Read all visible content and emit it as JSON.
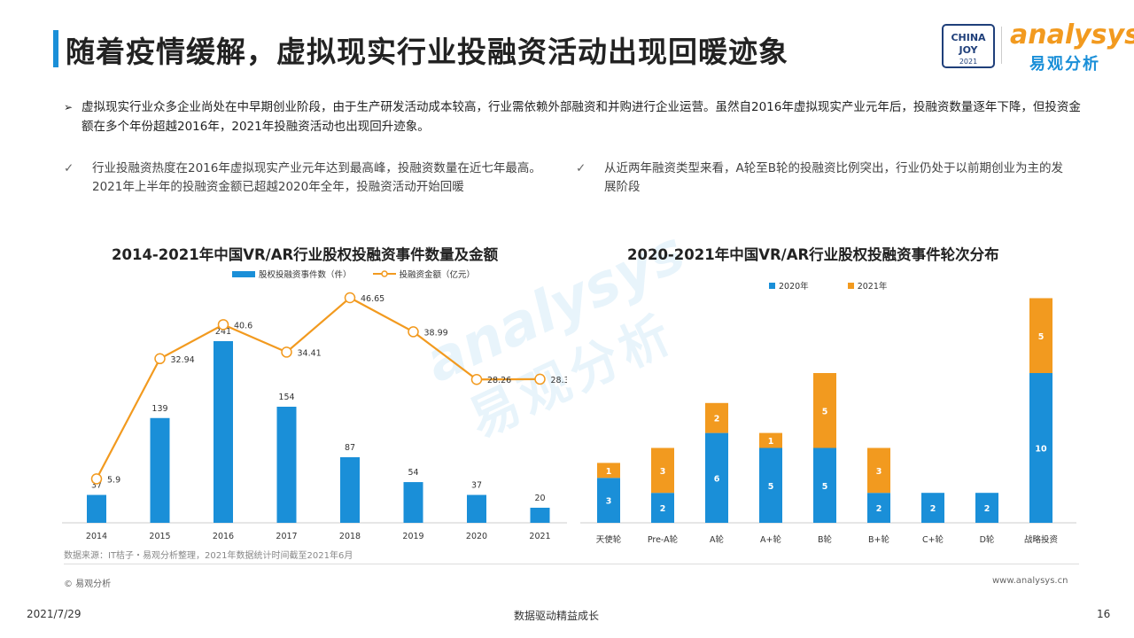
{
  "header": {
    "title": "随着疫情缓解，虚拟现实行业投融资活动出现回暖迹象",
    "logo_chinajoy": "CHINA JOY 2021",
    "logo_analysys": "analysys",
    "logo_cn": "易观分析"
  },
  "intro": {
    "arrow": "➢",
    "text": "虚拟现实行业众多企业尚处在中早期创业阶段，由于生产研发活动成本较高，行业需依赖外部融资和并购进行企业运营。虽然自2016年虚拟现实产业元年后，投融资数量逐年下降，但投资金额在多个年份超越2016年，2021年投融资活动也出现回升迹象。"
  },
  "points": [
    {
      "mark": "✓",
      "text": "行业投融资热度在2016年虚拟现实产业元年达到最高峰，投融资数量在近七年最高。2021年上半年的投融资金额已超越2020年全年，投融资活动开始回暖"
    },
    {
      "mark": "✓",
      "text": "从近两年融资类型来看，A轮至B轮的投融资比例突出，行业仍处于以前期创业为主的发展阶段"
    }
  ],
  "chart_data": [
    {
      "type": "bar+line",
      "title": "2014-2021年中国VR/AR行业股权投融资事件数量及金额",
      "categories": [
        "2014",
        "2015",
        "2016",
        "2017",
        "2018",
        "2019",
        "2020",
        "2021"
      ],
      "series": [
        {
          "name": "股权投融资事件数（件）",
          "type": "bar",
          "color": "#1a8fd8",
          "values": [
            37,
            139,
            241,
            154,
            87,
            54,
            37,
            20
          ]
        },
        {
          "name": "投融资金额（亿元）",
          "type": "line",
          "color": "#f29a1f",
          "values": [
            5.9,
            32.94,
            40.6,
            34.41,
            46.65,
            38.99,
            28.26,
            28.33
          ]
        }
      ],
      "legend_position": "top"
    },
    {
      "type": "stacked-bar",
      "title": "2020-2021年中国VR/AR行业股权投融资事件轮次分布",
      "categories": [
        "天使轮",
        "Pre-A轮",
        "A轮",
        "A+轮",
        "B轮",
        "B+轮",
        "C+轮",
        "D轮",
        "战略投资"
      ],
      "series": [
        {
          "name": "2020年",
          "color": "#1a8fd8",
          "values": [
            3,
            2,
            6,
            5,
            5,
            2,
            2,
            2,
            10
          ]
        },
        {
          "name": "2021年",
          "color": "#f29a1f",
          "values": [
            1,
            3,
            2,
            1,
            5,
            3,
            0,
            0,
            5
          ]
        }
      ],
      "legend_position": "top"
    }
  ],
  "footer": {
    "source": "数据来源：IT桔子・易观分析整理，2021年数据统计时间截至2021年6月",
    "copyright": "© 易观分析",
    "url": "www.analysys.cn",
    "date": "2021/7/29",
    "slogan": "数据驱动精益成长",
    "page": "16"
  }
}
